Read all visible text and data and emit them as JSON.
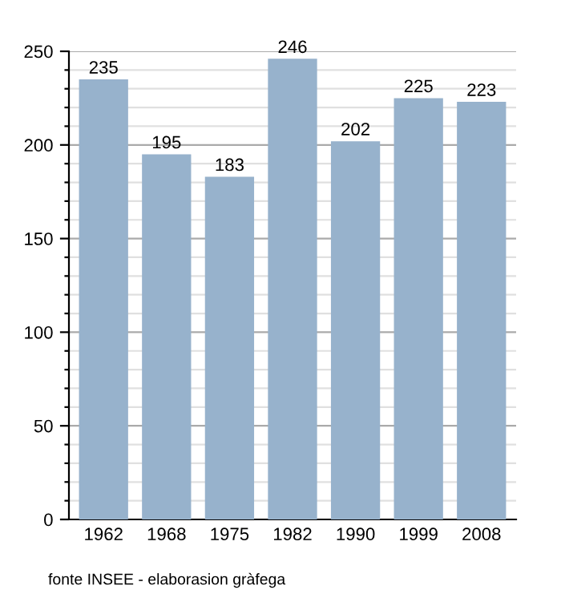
{
  "chart_data": {
    "type": "bar",
    "categories": [
      "1962",
      "1968",
      "1975",
      "1982",
      "1990",
      "1999",
      "2008"
    ],
    "values": [
      235,
      195,
      183,
      246,
      202,
      225,
      223
    ],
    "color": "#97b2cc",
    "data_labels": true,
    "ylim": [
      0,
      250
    ],
    "yticks": [
      0,
      {
        "value": 10,
        "label": null
      },
      {
        "value": 20,
        "label": null
      },
      {
        "value": 30,
        "label": null
      },
      {
        "value": 40,
        "label": null
      },
      50,
      {
        "value": 60,
        "label": null
      },
      {
        "value": 70,
        "label": null
      },
      {
        "value": 80,
        "label": null
      },
      {
        "value": 90,
        "label": null
      },
      100,
      {
        "value": 110,
        "label": null
      },
      {
        "value": 120,
        "label": null
      },
      {
        "value": 130,
        "label": null
      },
      {
        "value": 140,
        "label": null
      },
      150,
      {
        "value": 160,
        "label": null
      },
      {
        "value": 170,
        "label": null
      },
      {
        "value": 180,
        "label": null
      },
      {
        "value": 190,
        "label": null
      },
      200,
      {
        "value": 210,
        "label": null
      },
      {
        "value": 220,
        "label": null
      },
      {
        "value": 230,
        "label": null
      },
      {
        "value": 240,
        "label": null
      },
      250
    ],
    "grid": "y",
    "annotations": [
      "fonte INSEE - elaborasion gràfega"
    ]
  }
}
